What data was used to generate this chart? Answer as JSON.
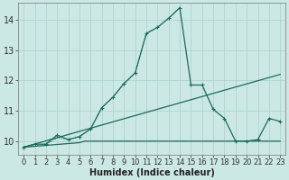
{
  "xlabel": "Humidex (Indice chaleur)",
  "bg_color": "#cce8e4",
  "grid_color": "#aacfcc",
  "line_color": "#1a6b5a",
  "xlim": [
    -0.5,
    23.5
  ],
  "ylim": [
    9.55,
    14.55
  ],
  "xticks": [
    0,
    1,
    2,
    3,
    4,
    5,
    6,
    7,
    8,
    9,
    10,
    11,
    12,
    13,
    14,
    15,
    16,
    17,
    18,
    19,
    20,
    21,
    22,
    23
  ],
  "yticks": [
    10,
    11,
    12,
    13,
    14
  ],
  "curve_main_x": [
    0,
    1,
    2,
    3,
    4,
    5,
    6,
    7,
    8,
    9,
    10,
    11,
    12,
    13,
    14,
    15,
    16,
    17,
    18,
    19,
    20,
    21,
    22,
    23
  ],
  "curve_main_y": [
    9.8,
    9.9,
    9.9,
    10.2,
    10.05,
    10.15,
    10.4,
    11.1,
    11.45,
    11.9,
    12.25,
    13.55,
    13.75,
    14.05,
    14.4,
    11.85,
    11.85,
    11.05,
    10.75,
    10.0,
    10.0,
    10.05,
    10.75,
    10.65
  ],
  "curve_trend_x": [
    0,
    23
  ],
  "curve_trend_y": [
    9.8,
    12.2
  ],
  "curve_flat_x": [
    0,
    5,
    5.5,
    18,
    19,
    23
  ],
  "curve_flat_y": [
    9.8,
    9.95,
    10.0,
    10.0,
    10.0,
    10.0
  ],
  "curve_dotted_x": [
    0,
    1,
    2,
    3,
    4,
    5,
    6,
    7,
    8,
    9,
    10,
    11,
    12,
    13,
    14
  ],
  "curve_dotted_y": [
    9.8,
    9.85,
    9.9,
    10.1,
    10.05,
    10.15,
    10.4,
    11.1,
    11.45,
    11.9,
    12.25,
    13.55,
    13.75,
    14.05,
    14.4
  ],
  "xlabel_fontsize": 7,
  "ytick_fontsize": 7,
  "xtick_fontsize": 6
}
